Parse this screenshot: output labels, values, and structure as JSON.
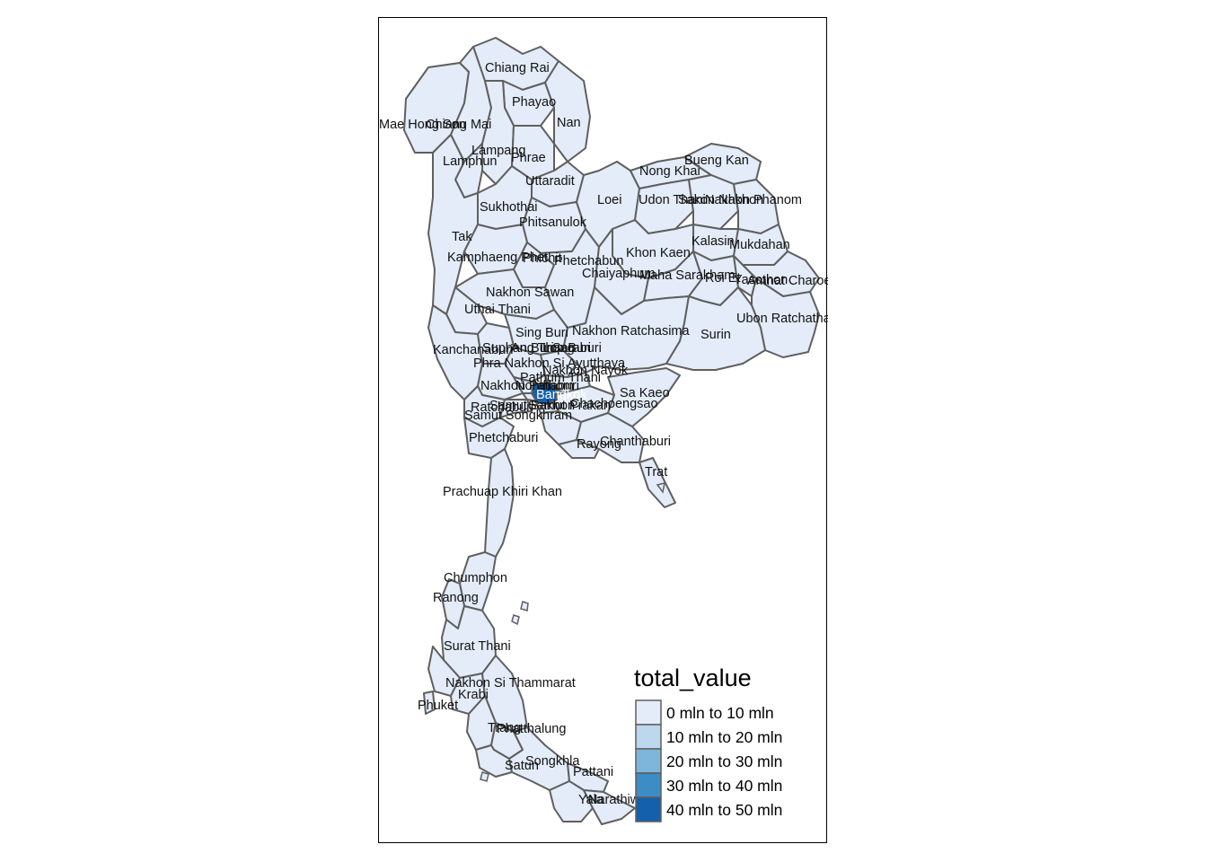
{
  "map": {
    "legend": {
      "title": "total_value",
      "items": [
        {
          "label": "0 mln to 10 mln",
          "color": "#e3ecf8"
        },
        {
          "label": "10 mln to 20 mln",
          "color": "#bdd7ed"
        },
        {
          "label": "20 mln to 30 mln",
          "color": "#7db6da"
        },
        {
          "label": "30 mln to 40 mln",
          "color": "#3d8cc6"
        },
        {
          "label": "40 mln to 50 mln",
          "color": "#1460ad"
        }
      ]
    },
    "colors": {
      "fill": "#e3ecf8",
      "border": "#5f5f5f",
      "highlight": "#1460ad",
      "frame": "#000000"
    },
    "provinces": [
      "Chiang Rai",
      "Phayao",
      "Mae Hong Son",
      "Chiang Mai",
      "Nan",
      "Lampang",
      "Lamphun",
      "Phrae",
      "Uttaradit",
      "Bueng Kan",
      "Nong Khai",
      "Loei",
      "Udon Thani",
      "Sakon Nakhon",
      "Nakhon Phanom",
      "Sukhothai",
      "Phitsanulok",
      "Tak",
      "Kalasin",
      "Khon Kaen",
      "Mukdahan",
      "Kamphaeng Phet",
      "Phichit",
      "Phetchabun",
      "Chaiyaphum",
      "Maha Sarakham",
      "Roi Et",
      "Yasothon",
      "Amnat Charoen",
      "Nakhon Sawan",
      "Uthai Thani",
      "Ubon Ratchathani",
      "Sing Buri",
      "Nakhon Ratchasima",
      "Surin",
      "Kanchanaburi",
      "Suphan Buri",
      "Ang Thong",
      "Lop Buri",
      "Saraburi",
      "Phra Nakhon Si Ayutthaya",
      "Nakhon Nayok",
      "Pathum Thani",
      "Nakhon Pathom",
      "Nonthaburi",
      "Bangkok",
      "Sa Kaeo",
      "Ratchaburi",
      "Samut Sakhon",
      "Samut Prakan",
      "Chachoengsao",
      "Samut Songkhram",
      "Phetchaburi",
      "Rayong",
      "Chanthaburi",
      "Trat",
      "Prachuap Khiri Khan",
      "Chumphon",
      "Ranong",
      "Surat Thani",
      "Nakhon Si Thammarat",
      "Krabi",
      "Phuket",
      "Trang",
      "Phatthalung",
      "Satun",
      "Songkhla",
      "Pattani",
      "Yala",
      "Narathiwat"
    ]
  }
}
